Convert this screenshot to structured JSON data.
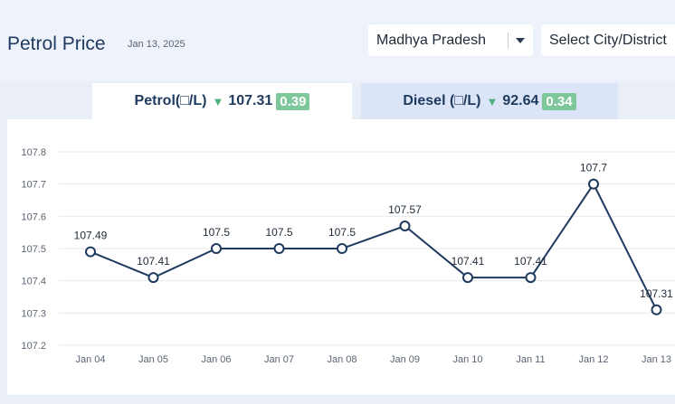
{
  "header": {
    "title": "Petrol Price",
    "date": "Jan 13, 2025"
  },
  "filters": {
    "state": "Madhya Pradesh",
    "city_placeholder": "Select City/District"
  },
  "tabs": [
    {
      "label": "Petrol(□/L)",
      "price": "107.31",
      "change": "0.39",
      "trend": "down"
    },
    {
      "label": "Diesel (□/L)",
      "price": "92.64",
      "change": "0.34",
      "trend": "down"
    }
  ],
  "colors": {
    "line": "#1f3a5f",
    "badge": "#7dc79b",
    "arrow": "#4bb07e",
    "active_tab": "#ffffff",
    "inactive_tab": "#dbe5f7"
  },
  "chart_data": {
    "type": "line",
    "categories": [
      "Jan 04",
      "Jan 05",
      "Jan 06",
      "Jan 07",
      "Jan 08",
      "Jan 09",
      "Jan 10",
      "Jan 11",
      "Jan 12",
      "Jan 13"
    ],
    "values": [
      107.49,
      107.41,
      107.5,
      107.5,
      107.5,
      107.57,
      107.41,
      107.41,
      107.7,
      107.31
    ],
    "data_labels": [
      "107.49",
      "107.41",
      "107.5",
      "107.5",
      "107.5",
      "107.57",
      "107.41",
      "107.41",
      "107.7",
      "107.31"
    ],
    "yticks": [
      "107.2",
      "107.3",
      "107.4",
      "107.5",
      "107.6",
      "107.7",
      "107.8"
    ],
    "ylim": [
      107.2,
      107.8
    ],
    "grid": true
  }
}
